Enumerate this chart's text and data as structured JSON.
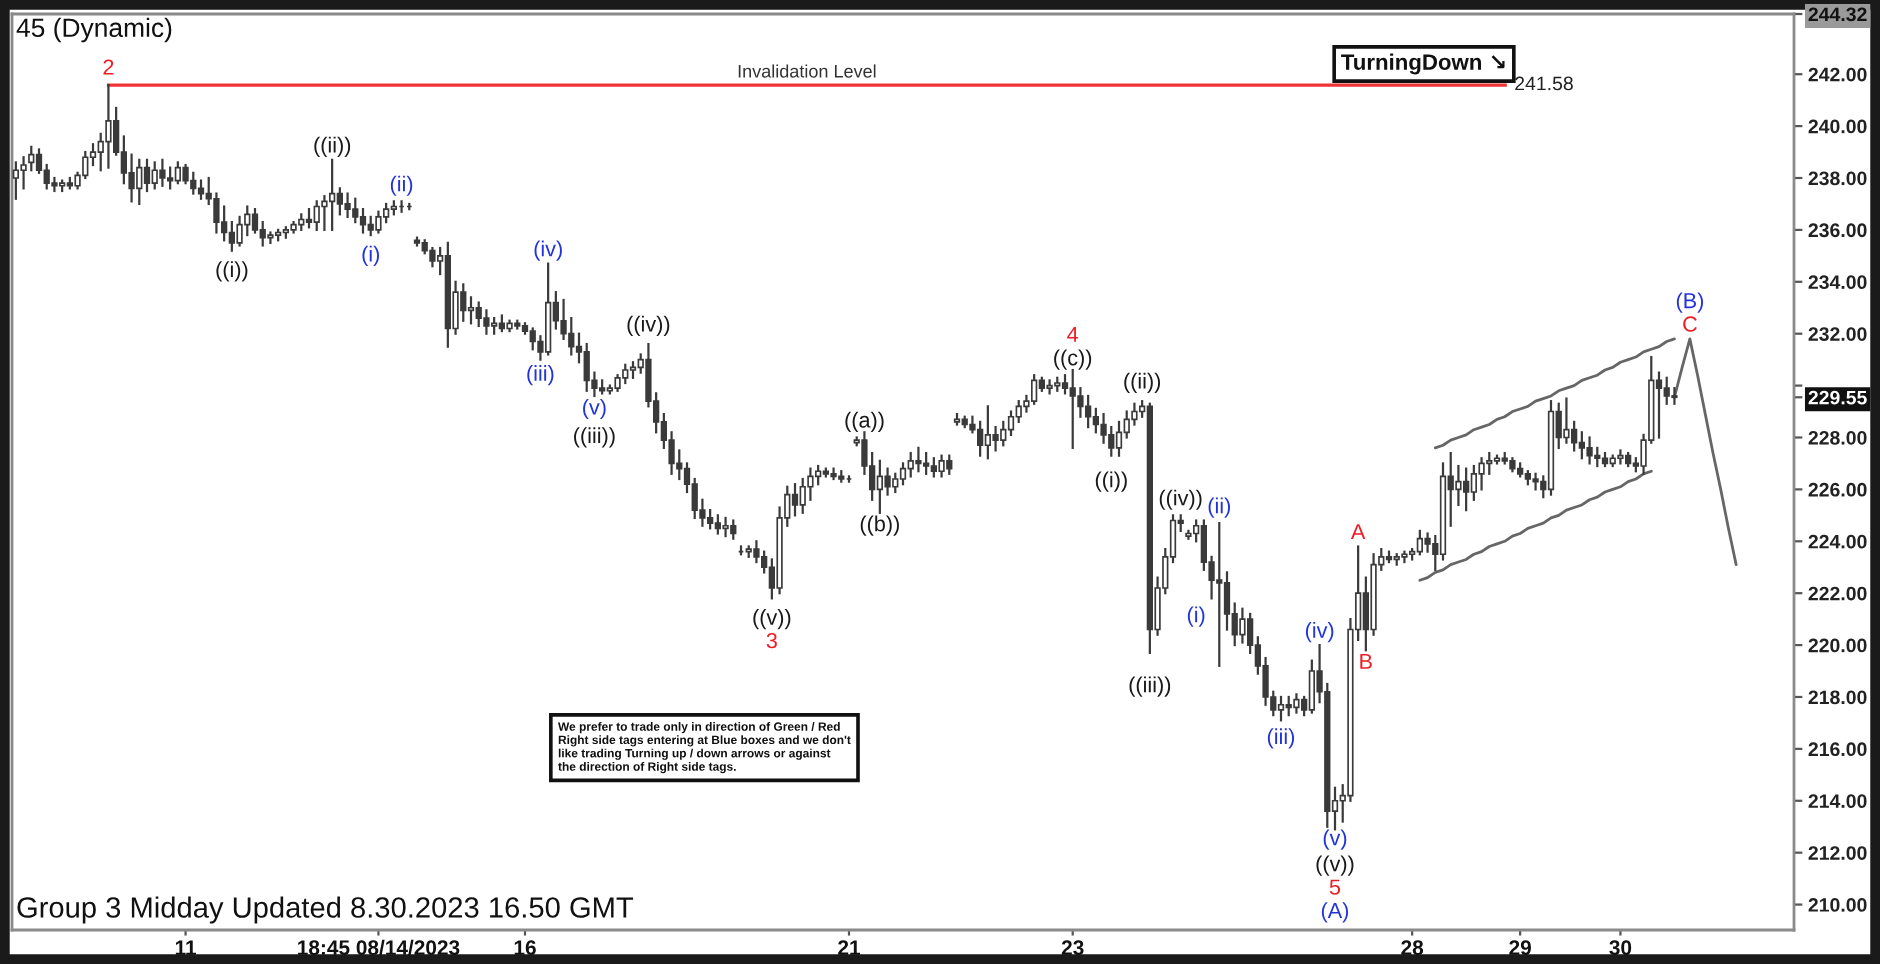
{
  "chart_data": {
    "type": "candlestick",
    "title": "45 (Dynamic)",
    "color": "#3a3a3a",
    "categories": [
      null,
      null,
      null,
      null,
      null,
      null,
      null,
      null,
      null,
      null,
      null,
      null,
      null,
      null,
      null,
      null,
      null,
      null,
      null,
      null,
      null,
      null,
      "11",
      null,
      null,
      null,
      null,
      null,
      null,
      null,
      null,
      null,
      null,
      null,
      null,
      null,
      null,
      null,
      null,
      null,
      null,
      null,
      null,
      null,
      null,
      null,
      null,
      "18:45 08/14/2023",
      null,
      null,
      null,
      null,
      null,
      null,
      null,
      null,
      null,
      null,
      null,
      null,
      null,
      null,
      null,
      null,
      null,
      null,
      "16",
      null,
      null,
      null,
      null,
      null,
      null,
      null,
      null,
      null,
      null,
      null,
      null,
      null,
      null,
      null,
      null,
      null,
      null,
      null,
      null,
      null,
      null,
      null,
      null,
      null,
      null,
      null,
      null,
      null,
      null,
      null,
      null,
      null,
      null,
      null,
      null,
      null,
      null,
      null,
      null,
      null,
      "21",
      null,
      null,
      null,
      null,
      null,
      null,
      null,
      null,
      null,
      null,
      null,
      null,
      null,
      null,
      null,
      null,
      null,
      null,
      null,
      null,
      null,
      null,
      null,
      null,
      null,
      null,
      null,
      null,
      "23",
      null,
      null,
      null,
      null,
      null,
      null,
      null,
      null,
      null,
      null,
      null,
      null,
      null,
      null,
      null,
      null,
      null,
      null,
      null,
      null,
      null,
      null,
      null,
      null,
      null,
      null,
      null,
      null,
      null,
      null,
      null,
      null,
      null,
      null,
      null,
      null,
      null,
      null,
      null,
      null,
      null,
      null,
      null,
      "28",
      null,
      null,
      null,
      null,
      null,
      null,
      null,
      null,
      null,
      null,
      null,
      null,
      null,
      "29",
      null,
      null,
      null,
      null,
      null,
      null,
      null,
      null,
      null,
      null,
      null,
      null,
      "30",
      null,
      null,
      null,
      null,
      null,
      null,
      null,
      null,
      null,
      null,
      null,
      null,
      null,
      null,
      null,
      null,
      null,
      null,
      null,
      null,
      null,
      null
    ],
    "ohlc": [
      [
        238.0,
        238.6,
        237.2,
        238.3
      ],
      [
        238.3,
        238.8,
        237.6,
        238.5
      ],
      [
        238.6,
        239.2,
        238.3,
        238.9
      ],
      [
        238.9,
        239.1,
        238.2,
        238.3
      ],
      [
        238.3,
        238.5,
        237.6,
        237.8
      ],
      [
        237.8,
        238.0,
        237.5,
        237.7
      ],
      [
        237.7,
        237.9,
        237.5,
        237.8
      ],
      [
        237.8,
        238.0,
        237.6,
        237.7
      ],
      [
        237.7,
        238.2,
        237.6,
        238.1
      ],
      [
        238.1,
        239.0,
        238.0,
        238.8
      ],
      [
        238.8,
        239.3,
        238.5,
        239.0
      ],
      [
        239.0,
        239.7,
        238.3,
        239.4
      ],
      [
        239.4,
        241.58,
        238.4,
        240.2
      ],
      [
        240.2,
        240.7,
        238.9,
        239.0
      ],
      [
        239.0,
        239.6,
        237.8,
        238.2
      ],
      [
        238.2,
        238.9,
        237.1,
        237.6
      ],
      [
        237.6,
        238.7,
        237.0,
        238.4
      ],
      [
        238.4,
        238.7,
        237.5,
        237.8
      ],
      [
        237.8,
        238.6,
        237.6,
        238.3
      ],
      [
        238.3,
        238.7,
        237.7,
        238.0
      ],
      [
        238.0,
        238.4,
        237.6,
        237.9
      ],
      [
        237.9,
        238.6,
        237.8,
        238.4
      ],
      [
        238.4,
        238.5,
        237.8,
        237.9
      ],
      [
        237.9,
        238.2,
        237.4,
        237.6
      ],
      [
        237.6,
        237.9,
        237.2,
        237.4
      ],
      [
        237.4,
        238.0,
        237.0,
        237.2
      ],
      [
        237.2,
        237.4,
        235.9,
        236.3
      ],
      [
        236.3,
        236.9,
        235.6,
        235.9
      ],
      [
        235.9,
        236.3,
        235.2,
        235.5
      ],
      [
        235.5,
        236.5,
        235.4,
        236.2
      ],
      [
        236.2,
        236.9,
        235.8,
        236.6
      ],
      [
        236.6,
        236.8,
        235.9,
        236.0
      ],
      [
        236.0,
        236.3,
        235.4,
        235.7
      ],
      [
        235.7,
        235.9,
        235.5,
        235.8
      ],
      [
        235.8,
        236.0,
        235.6,
        235.9
      ],
      [
        235.9,
        236.1,
        235.7,
        236.0
      ],
      [
        236.0,
        236.3,
        235.9,
        236.2
      ],
      [
        236.2,
        236.6,
        236.0,
        236.4
      ],
      [
        236.4,
        236.8,
        236.1,
        236.3
      ],
      [
        236.3,
        237.1,
        236.0,
        236.9
      ],
      [
        236.9,
        237.3,
        236.0,
        237.1
      ],
      [
        237.1,
        238.7,
        236.0,
        237.4
      ],
      [
        237.4,
        237.6,
        236.6,
        237.0
      ],
      [
        237.0,
        237.4,
        236.5,
        236.8
      ],
      [
        236.8,
        237.2,
        236.3,
        236.5
      ],
      [
        236.5,
        236.8,
        235.9,
        236.2
      ],
      [
        236.2,
        236.5,
        235.8,
        236.0
      ],
      [
        236.0,
        236.7,
        235.9,
        236.5
      ],
      [
        236.5,
        237.0,
        236.3,
        236.8
      ],
      [
        236.8,
        237.1,
        236.6,
        236.9
      ],
      [
        236.9,
        237.1,
        236.7,
        236.9
      ],
      [
        236.9,
        237.0,
        236.8,
        236.9
      ],
      [
        235.6,
        235.7,
        235.4,
        235.5
      ],
      [
        235.5,
        235.6,
        235.1,
        235.2
      ],
      [
        235.2,
        235.3,
        234.6,
        234.8
      ],
      [
        234.8,
        235.3,
        234.3,
        235.0
      ],
      [
        235.0,
        235.5,
        231.5,
        232.2
      ],
      [
        232.2,
        234.0,
        232.0,
        233.6
      ],
      [
        233.6,
        233.9,
        232.5,
        232.9
      ],
      [
        232.9,
        233.4,
        232.4,
        233.0
      ],
      [
        233.0,
        233.2,
        232.3,
        232.6
      ],
      [
        232.6,
        232.9,
        232.0,
        232.3
      ],
      [
        232.3,
        232.6,
        232.0,
        232.4
      ],
      [
        232.4,
        232.7,
        232.1,
        232.2
      ],
      [
        232.2,
        232.5,
        232.1,
        232.4
      ],
      [
        232.4,
        232.5,
        232.2,
        232.3
      ],
      [
        232.3,
        232.4,
        232.0,
        232.1
      ],
      [
        232.1,
        232.2,
        231.4,
        231.7
      ],
      [
        231.7,
        231.9,
        231.0,
        231.3
      ],
      [
        231.3,
        234.7,
        231.2,
        233.2
      ],
      [
        233.2,
        233.6,
        232.2,
        232.5
      ],
      [
        232.5,
        233.3,
        231.8,
        232.0
      ],
      [
        232.0,
        232.6,
        231.2,
        231.5
      ],
      [
        231.5,
        232.0,
        230.9,
        231.3
      ],
      [
        231.3,
        231.6,
        229.8,
        230.2
      ],
      [
        230.2,
        230.5,
        229.6,
        229.9
      ],
      [
        229.9,
        230.2,
        229.7,
        229.8
      ],
      [
        229.8,
        230.0,
        229.7,
        229.9
      ],
      [
        229.9,
        230.4,
        229.8,
        230.3
      ],
      [
        230.3,
        230.8,
        230.1,
        230.6
      ],
      [
        230.6,
        230.9,
        230.3,
        230.7
      ],
      [
        230.7,
        231.2,
        230.5,
        231.0
      ],
      [
        231.0,
        231.6,
        229.2,
        229.4
      ],
      [
        229.4,
        229.7,
        228.2,
        228.6
      ],
      [
        228.6,
        228.9,
        227.6,
        227.9
      ],
      [
        227.9,
        228.2,
        226.6,
        227.0
      ],
      [
        227.0,
        227.5,
        226.4,
        226.8
      ],
      [
        226.8,
        227.0,
        225.9,
        226.2
      ],
      [
        226.2,
        226.4,
        224.9,
        225.2
      ],
      [
        225.2,
        225.6,
        224.6,
        224.9
      ],
      [
        224.9,
        225.2,
        224.5,
        224.7
      ],
      [
        224.7,
        225.0,
        224.3,
        224.5
      ],
      [
        224.5,
        224.9,
        224.2,
        224.6
      ],
      [
        224.6,
        224.8,
        224.1,
        224.3
      ],
      [
        223.6,
        223.8,
        223.5,
        223.6
      ],
      [
        223.6,
        223.8,
        223.4,
        223.7
      ],
      [
        223.7,
        224.0,
        223.2,
        223.4
      ],
      [
        223.4,
        223.6,
        222.8,
        223.0
      ],
      [
        223.0,
        223.3,
        221.8,
        222.2
      ],
      [
        222.2,
        225.3,
        222.0,
        224.9
      ],
      [
        224.9,
        226.1,
        224.6,
        225.8
      ],
      [
        225.8,
        226.2,
        225.0,
        225.4
      ],
      [
        225.4,
        226.4,
        225.1,
        226.1
      ],
      [
        226.1,
        226.8,
        225.6,
        226.5
      ],
      [
        226.5,
        226.9,
        226.2,
        226.7
      ],
      [
        226.7,
        226.8,
        226.5,
        226.6
      ],
      [
        226.6,
        226.8,
        226.4,
        226.5
      ],
      [
        226.5,
        226.7,
        226.3,
        226.4
      ],
      [
        226.4,
        226.5,
        226.3,
        226.4
      ],
      [
        227.8,
        228.0,
        227.7,
        227.9
      ],
      [
        227.9,
        228.2,
        226.6,
        226.9
      ],
      [
        226.9,
        227.4,
        225.6,
        226.0
      ],
      [
        226.0,
        227.1,
        225.1,
        226.5
      ],
      [
        226.5,
        226.8,
        225.8,
        226.1
      ],
      [
        226.1,
        226.6,
        225.9,
        226.4
      ],
      [
        226.4,
        227.0,
        226.2,
        226.8
      ],
      [
        226.8,
        227.4,
        226.5,
        227.1
      ],
      [
        227.1,
        227.6,
        226.7,
        227.0
      ],
      [
        227.0,
        227.4,
        226.6,
        226.9
      ],
      [
        226.9,
        227.2,
        226.5,
        226.7
      ],
      [
        226.7,
        227.3,
        226.5,
        227.1
      ],
      [
        227.1,
        227.3,
        226.6,
        226.8
      ],
      [
        228.6,
        228.9,
        228.5,
        228.7
      ],
      [
        228.7,
        228.8,
        228.4,
        228.5
      ],
      [
        228.5,
        228.8,
        228.2,
        228.3
      ],
      [
        228.3,
        228.6,
        227.3,
        227.7
      ],
      [
        227.7,
        229.2,
        227.2,
        228.1
      ],
      [
        228.1,
        228.4,
        227.5,
        227.9
      ],
      [
        227.9,
        228.6,
        227.7,
        228.3
      ],
      [
        228.3,
        229.0,
        228.1,
        228.8
      ],
      [
        228.8,
        229.4,
        228.6,
        229.2
      ],
      [
        229.2,
        229.6,
        229.0,
        229.4
      ],
      [
        229.4,
        230.4,
        229.3,
        230.2
      ],
      [
        230.2,
        230.3,
        229.8,
        229.9
      ],
      [
        229.9,
        230.2,
        229.7,
        230.0
      ],
      [
        230.0,
        230.3,
        229.8,
        230.1
      ],
      [
        230.1,
        230.4,
        229.7,
        229.9
      ],
      [
        229.9,
        230.6,
        227.6,
        229.6
      ],
      [
        229.6,
        229.9,
        228.8,
        229.2
      ],
      [
        229.2,
        229.6,
        228.4,
        228.8
      ],
      [
        228.8,
        229.1,
        228.2,
        228.5
      ],
      [
        228.5,
        228.9,
        227.8,
        228.1
      ],
      [
        228.1,
        228.4,
        227.3,
        227.6
      ],
      [
        227.6,
        228.6,
        227.3,
        228.2
      ],
      [
        228.2,
        229.0,
        228.0,
        228.7
      ],
      [
        228.7,
        229.3,
        228.5,
        229.0
      ],
      [
        229.0,
        229.4,
        228.8,
        229.2
      ],
      [
        229.2,
        229.3,
        219.7,
        220.6
      ],
      [
        220.6,
        222.6,
        220.4,
        222.2
      ],
      [
        222.2,
        223.7,
        222.0,
        223.4
      ],
      [
        223.4,
        225.0,
        223.2,
        224.8
      ],
      [
        224.8,
        225.0,
        224.4,
        224.7
      ],
      [
        224.2,
        224.4,
        224.1,
        224.3
      ],
      [
        224.3,
        224.8,
        224.0,
        224.6
      ],
      [
        224.6,
        224.8,
        222.9,
        223.2
      ],
      [
        223.2,
        223.4,
        221.8,
        222.5
      ],
      [
        222.5,
        224.7,
        219.2,
        222.4
      ],
      [
        222.4,
        222.8,
        220.6,
        221.2
      ],
      [
        221.2,
        221.6,
        220.0,
        220.4
      ],
      [
        220.4,
        221.4,
        220.1,
        221.0
      ],
      [
        221.0,
        221.2,
        219.7,
        220.0
      ],
      [
        220.0,
        220.3,
        218.9,
        219.2
      ],
      [
        219.2,
        219.5,
        217.7,
        218.0
      ],
      [
        218.0,
        218.2,
        217.3,
        217.5
      ],
      [
        217.5,
        218.0,
        217.1,
        217.7
      ],
      [
        217.7,
        218.0,
        217.3,
        217.6
      ],
      [
        217.6,
        218.1,
        217.4,
        217.9
      ],
      [
        217.9,
        218.0,
        217.3,
        217.5
      ],
      [
        217.5,
        219.4,
        217.4,
        219.0
      ],
      [
        219.0,
        220.0,
        217.8,
        218.2
      ],
      [
        218.2,
        218.5,
        213.0,
        213.6
      ],
      [
        213.6,
        214.5,
        212.9,
        214.0
      ],
      [
        214.0,
        214.6,
        213.2,
        214.2
      ],
      [
        214.2,
        221.0,
        214.0,
        220.6
      ],
      [
        220.6,
        223.8,
        220.2,
        222.0
      ],
      [
        222.0,
        222.6,
        219.8,
        220.6
      ],
      [
        220.6,
        223.5,
        220.4,
        223.1
      ],
      [
        223.1,
        223.7,
        222.9,
        223.4
      ],
      [
        223.4,
        223.6,
        223.2,
        223.3
      ],
      [
        223.3,
        223.5,
        223.1,
        223.4
      ],
      [
        223.4,
        223.6,
        223.2,
        223.5
      ],
      [
        223.5,
        223.7,
        223.3,
        223.6
      ],
      [
        223.6,
        224.4,
        223.5,
        224.1
      ],
      [
        224.1,
        224.3,
        223.6,
        223.9
      ],
      [
        223.9,
        224.2,
        222.9,
        223.5
      ],
      [
        223.5,
        227.0,
        223.3,
        226.5
      ],
      [
        226.5,
        227.4,
        224.6,
        226.0
      ],
      [
        226.0,
        226.9,
        225.4,
        226.3
      ],
      [
        226.3,
        226.8,
        225.2,
        225.9
      ],
      [
        225.9,
        226.9,
        225.6,
        226.6
      ],
      [
        226.6,
        227.2,
        226.0,
        227.0
      ],
      [
        227.0,
        227.4,
        226.6,
        227.1
      ],
      [
        227.1,
        227.3,
        227.0,
        227.2
      ],
      [
        227.2,
        227.4,
        227.0,
        227.1
      ],
      [
        227.1,
        227.2,
        226.7,
        226.8
      ],
      [
        226.8,
        227.0,
        226.5,
        226.6
      ],
      [
        226.6,
        226.7,
        226.2,
        226.4
      ],
      [
        226.4,
        226.6,
        226.0,
        226.3
      ],
      [
        226.3,
        226.5,
        225.7,
        226.0
      ],
      [
        226.0,
        229.4,
        225.8,
        229.0
      ],
      [
        229.0,
        229.3,
        227.6,
        228.0
      ],
      [
        228.0,
        229.5,
        227.8,
        228.3
      ],
      [
        228.3,
        228.6,
        227.5,
        227.8
      ],
      [
        227.8,
        228.2,
        227.2,
        227.6
      ],
      [
        227.6,
        228.0,
        227.0,
        227.3
      ],
      [
        227.3,
        227.6,
        226.9,
        227.2
      ],
      [
        227.2,
        227.4,
        226.9,
        227.0
      ],
      [
        227.0,
        227.3,
        226.9,
        227.2
      ],
      [
        227.2,
        227.5,
        227.0,
        227.3
      ],
      [
        227.3,
        227.4,
        226.9,
        227.0
      ],
      [
        227.0,
        227.2,
        226.7,
        226.9
      ],
      [
        226.9,
        228.1,
        226.6,
        227.9
      ],
      [
        227.9,
        231.1,
        227.8,
        230.2
      ],
      [
        230.2,
        230.5,
        228.0,
        229.9
      ],
      [
        229.9,
        230.3,
        229.3,
        229.6
      ],
      [
        229.6,
        229.9,
        229.3,
        229.55
      ],
      null,
      null,
      null,
      null,
      null,
      null,
      null,
      null,
      null,
      null,
      null,
      null,
      null,
      null,
      null
    ],
    "series": [
      {
        "type": "line",
        "color": "#666666",
        "values": [
          null,
          null,
          null,
          null,
          null,
          null,
          null,
          null,
          null,
          null,
          null,
          null,
          null,
          null,
          null,
          null,
          null,
          null,
          null,
          null,
          null,
          null,
          null,
          null,
          null,
          null,
          null,
          null,
          null,
          null,
          null,
          null,
          null,
          null,
          null,
          null,
          null,
          null,
          null,
          null,
          null,
          null,
          null,
          null,
          null,
          null,
          null,
          null,
          null,
          null,
          null,
          null,
          null,
          null,
          null,
          null,
          null,
          null,
          null,
          null,
          null,
          null,
          null,
          null,
          null,
          null,
          null,
          null,
          null,
          null,
          null,
          null,
          null,
          null,
          null,
          null,
          null,
          null,
          null,
          null,
          null,
          null,
          null,
          null,
          null,
          null,
          null,
          null,
          null,
          null,
          null,
          null,
          null,
          null,
          null,
          null,
          null,
          null,
          null,
          null,
          null,
          null,
          null,
          null,
          null,
          null,
          null,
          null,
          null,
          null,
          null,
          null,
          null,
          null,
          null,
          null,
          null,
          null,
          null,
          null,
          null,
          null,
          null,
          null,
          null,
          null,
          null,
          null,
          null,
          null,
          null,
          null,
          null,
          null,
          null,
          null,
          null,
          null,
          null,
          null,
          null,
          null,
          null,
          null,
          null,
          null,
          null,
          null,
          null,
          null,
          null,
          null,
          null,
          null,
          null,
          null,
          null,
          null,
          null,
          null,
          null,
          null,
          null,
          null,
          null,
          null,
          null,
          null,
          null,
          null,
          null,
          null,
          null,
          null,
          null,
          null,
          null,
          null,
          null,
          null,
          null,
          null,
          null,
          null,
          227.6,
          227.7,
          227.9,
          228.0,
          228.1,
          228.3,
          228.4,
          228.5,
          228.7,
          228.8,
          229.0,
          229.1,
          229.2,
          229.4,
          229.5,
          229.6,
          229.8,
          229.9,
          230.0,
          230.2,
          230.3,
          230.4,
          230.6,
          230.7,
          230.9,
          231.0,
          231.1,
          231.3,
          231.4,
          231.5,
          231.7,
          231.8,
          null,
          null,
          null,
          null,
          null,
          null,
          null,
          null,
          null,
          null,
          null,
          null,
          null,
          null,
          null
        ]
      },
      {
        "type": "line",
        "color": "#666666",
        "values": [
          null,
          null,
          null,
          null,
          null,
          null,
          null,
          null,
          null,
          null,
          null,
          null,
          null,
          null,
          null,
          null,
          null,
          null,
          null,
          null,
          null,
          null,
          null,
          null,
          null,
          null,
          null,
          null,
          null,
          null,
          null,
          null,
          null,
          null,
          null,
          null,
          null,
          null,
          null,
          null,
          null,
          null,
          null,
          null,
          null,
          null,
          null,
          null,
          null,
          null,
          null,
          null,
          null,
          null,
          null,
          null,
          null,
          null,
          null,
          null,
          null,
          null,
          null,
          null,
          null,
          null,
          null,
          null,
          null,
          null,
          null,
          null,
          null,
          null,
          null,
          null,
          null,
          null,
          null,
          null,
          null,
          null,
          null,
          null,
          null,
          null,
          null,
          null,
          null,
          null,
          null,
          null,
          null,
          null,
          null,
          null,
          null,
          null,
          null,
          null,
          null,
          null,
          null,
          null,
          null,
          null,
          null,
          null,
          null,
          null,
          null,
          null,
          null,
          null,
          null,
          null,
          null,
          null,
          null,
          null,
          null,
          null,
          null,
          null,
          null,
          null,
          null,
          null,
          null,
          null,
          null,
          null,
          null,
          null,
          null,
          null,
          null,
          null,
          null,
          null,
          null,
          null,
          null,
          null,
          null,
          null,
          null,
          null,
          null,
          null,
          null,
          null,
          null,
          null,
          null,
          null,
          null,
          null,
          null,
          null,
          null,
          null,
          null,
          null,
          null,
          null,
          null,
          null,
          null,
          null,
          null,
          null,
          null,
          null,
          null,
          null,
          null,
          null,
          null,
          null,
          null,
          null,
          222.5,
          222.6,
          222.8,
          222.9,
          223.1,
          223.2,
          223.3,
          223.5,
          223.6,
          223.8,
          223.9,
          224.0,
          224.2,
          224.3,
          224.5,
          224.6,
          224.7,
          224.9,
          225.0,
          225.2,
          225.3,
          225.4,
          225.6,
          225.7,
          225.9,
          226.0,
          226.1,
          226.3,
          226.4,
          226.6,
          226.7,
          null,
          null,
          null,
          null,
          null,
          null,
          null,
          null,
          null,
          null,
          null,
          null,
          null,
          null,
          null,
          null,
          null,
          null
        ]
      },
      {
        "type": "line",
        "color": "#666666",
        "values": [
          null,
          null,
          null,
          null,
          null,
          null,
          null,
          null,
          null,
          null,
          null,
          null,
          null,
          null,
          null,
          null,
          null,
          null,
          null,
          null,
          null,
          null,
          null,
          null,
          null,
          null,
          null,
          null,
          null,
          null,
          null,
          null,
          null,
          null,
          null,
          null,
          null,
          null,
          null,
          null,
          null,
          null,
          null,
          null,
          null,
          null,
          null,
          null,
          null,
          null,
          null,
          null,
          null,
          null,
          null,
          null,
          null,
          null,
          null,
          null,
          null,
          null,
          null,
          null,
          null,
          null,
          null,
          null,
          null,
          null,
          null,
          null,
          null,
          null,
          null,
          null,
          null,
          null,
          null,
          null,
          null,
          null,
          null,
          null,
          null,
          null,
          null,
          null,
          null,
          null,
          null,
          null,
          null,
          null,
          null,
          null,
          null,
          null,
          null,
          null,
          null,
          null,
          null,
          null,
          null,
          null,
          null,
          null,
          null,
          null,
          null,
          null,
          null,
          null,
          null,
          null,
          null,
          null,
          null,
          null,
          null,
          null,
          null,
          null,
          null,
          null,
          null,
          null,
          null,
          null,
          null,
          null,
          null,
          null,
          null,
          null,
          null,
          null,
          null,
          null,
          null,
          null,
          null,
          null,
          null,
          null,
          null,
          null,
          null,
          null,
          null,
          null,
          null,
          null,
          null,
          null,
          null,
          null,
          null,
          null,
          null,
          null,
          null,
          null,
          null,
          null,
          null,
          null,
          null,
          null,
          null,
          null,
          null,
          null,
          null,
          null,
          null,
          null,
          null,
          null,
          null,
          null,
          null,
          null,
          null,
          null,
          null,
          null,
          null,
          null,
          null,
          null,
          null,
          null,
          null,
          null,
          null,
          null,
          null,
          null,
          null,
          null,
          null,
          null,
          null,
          null,
          null,
          null,
          null,
          null,
          null,
          null,
          null,
          null,
          null,
          229.55,
          230.7,
          231.8,
          230.4,
          228.9,
          227.4,
          226.0,
          224.5,
          223.1,
          null,
          null,
          null,
          null,
          null,
          null,
          null
        ]
      }
    ],
    "ylim": [
      209.02,
      244.32
    ],
    "yticks": [
      {
        "value": 210,
        "label": "210.00"
      },
      {
        "value": 212,
        "label": "212.00"
      },
      {
        "value": 214,
        "label": "214.00"
      },
      {
        "value": 216,
        "label": "216.00"
      },
      {
        "value": 218,
        "label": "218.00"
      },
      {
        "value": 220,
        "label": "220.00"
      },
      {
        "value": 222,
        "label": "222.00"
      },
      {
        "value": 224,
        "label": "224.00"
      },
      {
        "value": 226,
        "label": "226.00"
      },
      {
        "value": 228,
        "label": "228.00"
      },
      {
        "value": 230,
        "label": null
      },
      {
        "value": 232,
        "label": "232.00"
      },
      {
        "value": 234,
        "label": "234.00"
      },
      {
        "value": 236,
        "label": "236.00"
      },
      {
        "value": 238,
        "label": "238.00"
      },
      {
        "value": 240,
        "label": "240.00"
      },
      {
        "value": 242,
        "label": "242.00"
      },
      {
        "value": 229.55,
        "label": "229.55"
      },
      {
        "value": 244.32,
        "label": "244.32"
      }
    ],
    "ref_lines": [
      {
        "axis": "y",
        "value": 241.58,
        "label": "Invalidation Level",
        "color": "#ee3333"
      }
    ],
    "annotations": [
      "2",
      "((i))",
      "((ii))",
      "(i)",
      "(ii)",
      "(iii)",
      "(iv)",
      "(v)",
      "((iii))",
      "((iv))",
      "((v))",
      "3",
      "((a))",
      "((b))",
      "((c))",
      "4",
      "((i))",
      "((ii))",
      "((iii))",
      "((iv))",
      "(i)",
      "(ii)",
      "(iii)",
      "(iv)",
      "(v)",
      "((v))",
      "5",
      "(A)",
      "A",
      "B",
      "C",
      "(B)",
      "241.58",
      "Group 3 Midday Updated 8.30.2023 16.50 GMT",
      "We prefer to trade only in direction of Green / Red\nRight side tags entering at Blue boxes and we don't\nlike trading Turning up / down arrows or against\nthe direction of Right side tags.",
      "TurningDown ↘"
    ]
  }
}
